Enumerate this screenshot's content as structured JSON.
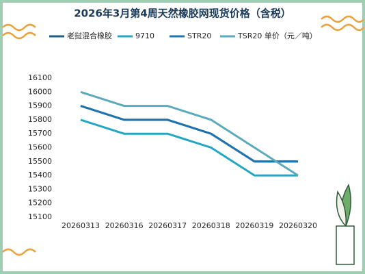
{
  "chart_data": {
    "type": "line",
    "title": "2026年3月第4周天然橡胶网现货价格（含税）",
    "categories": [
      "20260313",
      "20260316",
      "20260317",
      "20260318",
      "20260319",
      "20260320"
    ],
    "series": [
      {
        "name": "老挝混合橡胶",
        "color": "#1b5e86",
        "values": [
          15900,
          15800,
          15800,
          15700,
          15500,
          15500
        ]
      },
      {
        "name": "9710",
        "color": "#22a6c4",
        "values": [
          15800,
          15700,
          15700,
          15600,
          15400,
          15400
        ]
      },
      {
        "name": "STR20",
        "color": "#1f73ae",
        "values": [
          15900,
          15800,
          15800,
          15700,
          15500,
          15500
        ]
      },
      {
        "name": "TSR20 单价（元／吨）",
        "color": "#5aaabb",
        "values": [
          16000,
          15900,
          15900,
          15800,
          15600,
          15400
        ]
      }
    ],
    "ylim": [
      15100,
      16100
    ],
    "yticks": [
      15100,
      15200,
      15300,
      15400,
      15500,
      15600,
      15700,
      15800,
      15900,
      16000,
      16100
    ],
    "grid": false,
    "legend": "top"
  }
}
